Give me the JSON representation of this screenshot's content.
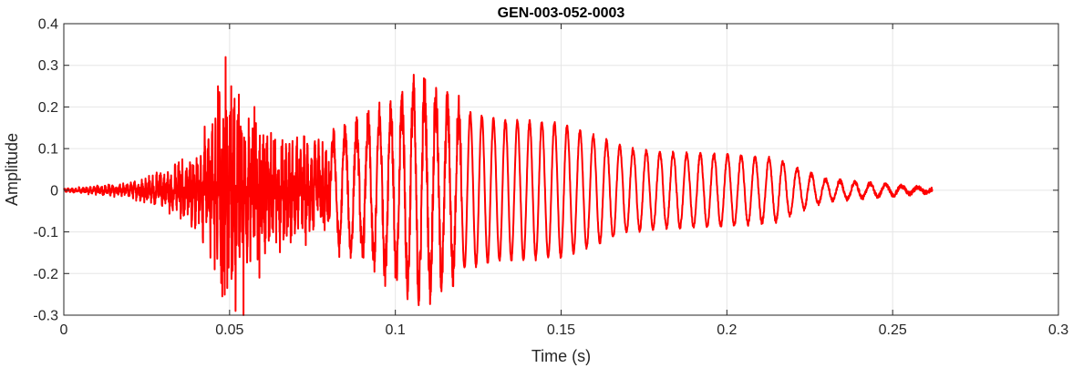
{
  "chart_data": {
    "type": "line",
    "title": "GEN-003-052-0003",
    "xlabel": "Time (s)",
    "ylabel": "Amplitude",
    "xlim": [
      0,
      0.3
    ],
    "ylim": [
      -0.3,
      0.4
    ],
    "x_ticks": [
      0,
      0.05,
      0.1,
      0.15,
      0.2,
      0.25,
      0.3
    ],
    "x_tick_labels": [
      "0",
      "0.05",
      "0.1",
      "0.15",
      "0.2",
      "0.25",
      "0.3"
    ],
    "y_ticks": [
      0.4,
      0.3,
      0.2,
      0.1,
      0,
      -0.1,
      -0.2,
      -0.3
    ],
    "y_tick_labels": [
      "0.4",
      "0.3",
      "0.2",
      "0.1",
      "0",
      "-0.1",
      "-0.2",
      "-0.3"
    ],
    "grid": true,
    "line_color": "#ff0000",
    "series": [
      {
        "x_start": 0,
        "x_end": 0.262,
        "envelope": [
          [
            0,
            0.005
          ],
          [
            0.01,
            0.012
          ],
          [
            0.02,
            0.02
          ],
          [
            0.03,
            0.05
          ],
          [
            0.04,
            0.1
          ],
          [
            0.047,
            0.25
          ],
          [
            0.05,
            0.28
          ],
          [
            0.055,
            0.2
          ],
          [
            0.06,
            0.16
          ],
          [
            0.07,
            0.14
          ],
          [
            0.08,
            0.12
          ],
          [
            0.09,
            0.15
          ],
          [
            0.1,
            0.2
          ],
          [
            0.107,
            0.24
          ],
          [
            0.115,
            0.2
          ],
          [
            0.13,
            0.17
          ],
          [
            0.15,
            0.16
          ],
          [
            0.17,
            0.1
          ],
          [
            0.18,
            0.09
          ],
          [
            0.2,
            0.085
          ],
          [
            0.215,
            0.075
          ],
          [
            0.22,
            0.055
          ],
          [
            0.23,
            0.025
          ],
          [
            0.25,
            0.012
          ],
          [
            0.262,
            0.004
          ]
        ],
        "peak_times": [
          0.0813,
          0.0848,
          0.0883,
          0.0918,
          0.0952,
          0.0986,
          0.102,
          0.1054,
          0.1088,
          0.1122,
          0.1157,
          0.1191,
          0.1226,
          0.1261,
          0.1296,
          0.1332,
          0.1368,
          0.1405,
          0.1442,
          0.148,
          0.1518,
          0.1557,
          0.1597,
          0.1637,
          0.1677,
          0.1717,
          0.1757,
          0.1798,
          0.1838,
          0.1879,
          0.192,
          0.1961,
          0.2002,
          0.2043,
          0.2085,
          0.2127,
          0.2169,
          0.2212,
          0.2255,
          0.2298,
          0.2341,
          0.2386,
          0.2432,
          0.2479,
          0.2527,
          0.2576
        ],
        "spikes": [
          [
            0.0465,
            0.25
          ],
          [
            0.0478,
            -0.255
          ],
          [
            0.0488,
            0.32
          ],
          [
            0.0493,
            -0.235
          ],
          [
            0.0505,
            0.25
          ],
          [
            0.0518,
            -0.29
          ],
          [
            0.0528,
            0.23
          ],
          [
            0.0542,
            -0.31
          ],
          [
            0.0515,
            0.22
          ],
          [
            0.0455,
            -0.19
          ],
          [
            0.0575,
            0.2
          ],
          [
            0.059,
            -0.21
          ]
        ]
      }
    ]
  }
}
